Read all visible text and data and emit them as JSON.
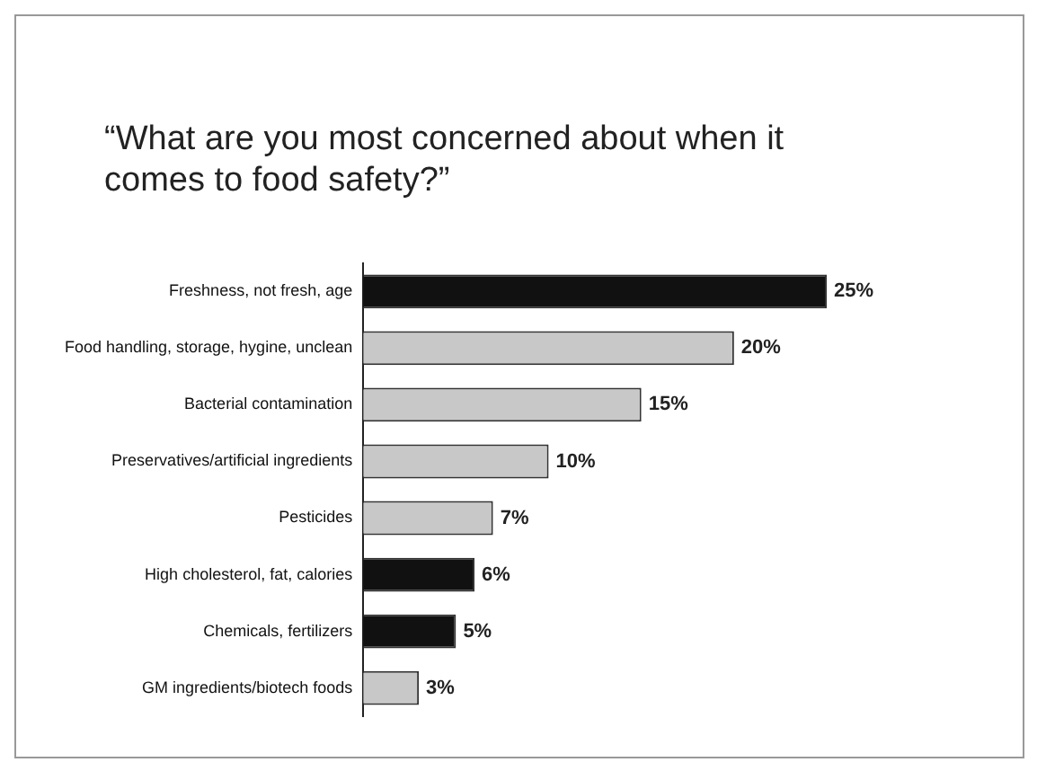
{
  "chart_data": {
    "type": "bar",
    "orientation": "horizontal",
    "title": "“What are you most concerned about when it comes to food safety?”",
    "categories": [
      "Freshness, not fresh, age",
      "Food handling, storage, hygine, unclean",
      "Bacterial contamination",
      "Preservatives/artificial ingredients",
      "Pesticides",
      "High cholesterol, fat, calories",
      "Chemicals, fertilizers",
      "GM ingredients/biotech foods"
    ],
    "values": [
      25,
      20,
      15,
      10,
      7,
      6,
      5,
      3
    ],
    "colors": [
      "#111111",
      "#c8c8c8",
      "#c8c8c8",
      "#c8c8c8",
      "#c8c8c8",
      "#111111",
      "#111111",
      "#c8c8c8"
    ],
    "value_labels": [
      "25%",
      "20%",
      "15%",
      "10%",
      "7%",
      "6%",
      "5%",
      "3%"
    ]
  }
}
